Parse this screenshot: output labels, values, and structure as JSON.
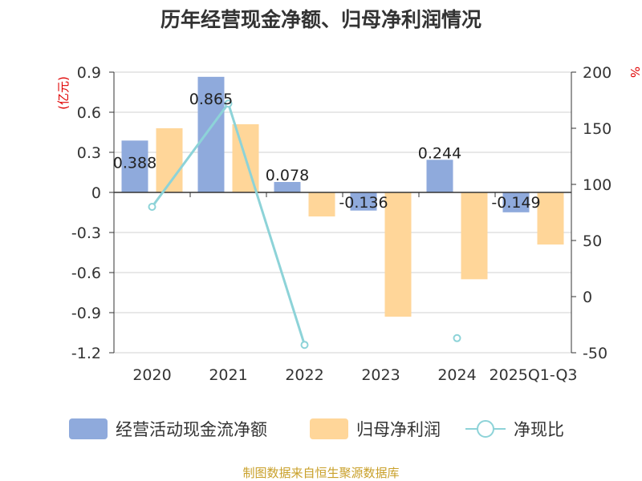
{
  "title": "历年经营现金净额、归母净利润情况",
  "source": "制图数据来自恒生聚源数据库",
  "chart_data": {
    "type": "bar",
    "categories": [
      "2020",
      "2021",
      "2022",
      "2023",
      "2024",
      "2025Q1-Q3"
    ],
    "series": [
      {
        "name": "经营活动现金流净额",
        "kind": "bar",
        "axis": "left",
        "color": "#8faadc",
        "values": [
          0.388,
          0.865,
          0.078,
          -0.136,
          0.244,
          -0.149
        ],
        "labels": [
          "0.388",
          "0.865",
          "0.078",
          "-0.136",
          "0.244",
          "-0.149"
        ]
      },
      {
        "name": "归母净利润",
        "kind": "bar",
        "axis": "left",
        "color": "#ffd699",
        "values": [
          0.48,
          0.51,
          -0.18,
          -0.93,
          -0.65,
          -0.39
        ]
      },
      {
        "name": "净现比",
        "kind": "line",
        "axis": "right",
        "color": "#8dd3d8",
        "values": [
          80,
          172,
          -43,
          null,
          -37,
          null
        ]
      }
    ],
    "left_axis": {
      "unit": "(亿元)",
      "ylim": [
        -1.2,
        0.9
      ],
      "ticks": [
        "0.9",
        "0.6",
        "0.3",
        "0",
        "-0.3",
        "-0.6",
        "-0.9",
        "-1.2"
      ]
    },
    "right_axis": {
      "unit": "%",
      "ylim": [
        -50,
        200
      ],
      "ticks": [
        "200",
        "150",
        "100",
        "50",
        "0",
        "-50"
      ]
    },
    "grid": true,
    "legend_position": "bottom"
  }
}
